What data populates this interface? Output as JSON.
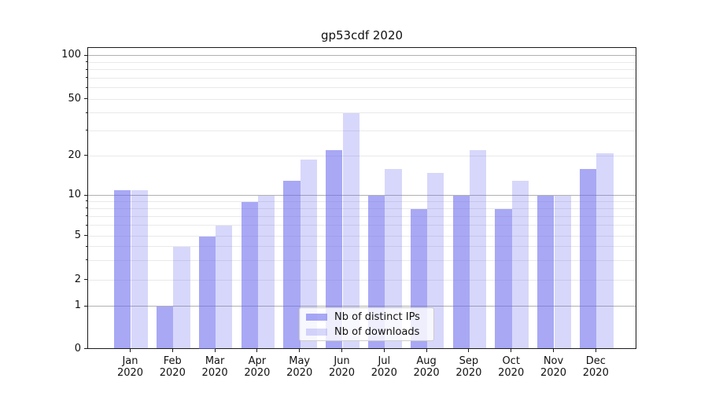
{
  "title": "gp53cdf 2020",
  "chart_data": {
    "type": "bar",
    "title": "gp53cdf 2020",
    "categories": [
      "Jan",
      "Feb",
      "Mar",
      "Apr",
      "May",
      "Jun",
      "Jul",
      "Aug",
      "Sep",
      "Oct",
      "Nov",
      "Dec"
    ],
    "x_year_label": "2020",
    "series": [
      {
        "name": "Nb of distinct IPs",
        "color": "rgba(102,102,238,0.57)",
        "values": [
          11,
          1,
          5,
          9,
          13,
          22,
          10,
          8,
          10,
          8,
          10,
          16
        ]
      },
      {
        "name": "Nb of downloads",
        "color": "rgba(102,102,238,0.26)",
        "values": [
          11,
          4,
          6,
          10,
          19,
          40,
          16,
          15,
          22,
          13,
          10,
          21
        ]
      }
    ],
    "y_axis": {
      "scale": "log-like (log above 1, linear 0-1)",
      "range": [
        0,
        115
      ],
      "tick_values": [
        0,
        1,
        2,
        5,
        10,
        20,
        50,
        100
      ],
      "tick_labels": [
        "0",
        "1",
        "2",
        "5",
        "10",
        "20",
        "50",
        "100"
      ],
      "major_gridline_values": [
        1,
        10,
        100
      ],
      "minor_gridline_values": [
        2,
        3,
        4,
        5,
        6,
        7,
        8,
        9,
        20,
        30,
        40,
        50,
        60,
        70,
        80,
        90
      ],
      "grid": "on"
    },
    "legend_position": "lower center",
    "colors": {
      "bar_base": "#6666ee",
      "major_grid": "#b0b0b0",
      "minor_grid": "#e9e9e9",
      "axis": "#1a1a1a"
    }
  }
}
